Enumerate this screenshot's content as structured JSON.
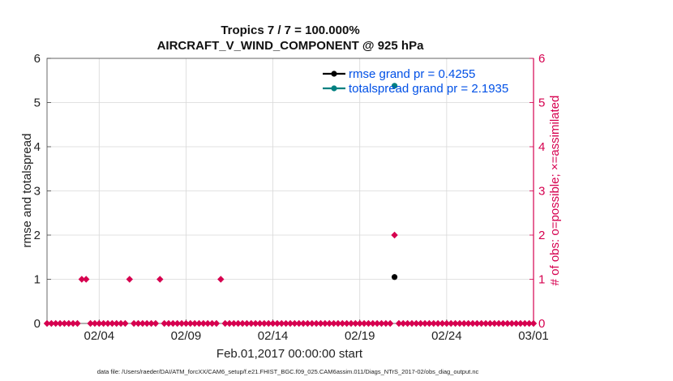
{
  "chart_data": {
    "type": "scatter",
    "title_line1": "Tropics 7 / 7 = 100.000%",
    "title_line2": "AIRCRAFT_V_WIND_COMPONENT @ 925 hPa",
    "ylabel_left": "rmse and totalspread",
    "ylabel_right": "# of obs: o=possible; ×=assimilated",
    "xlabel": "Feb.01,2017 00:00:00 start",
    "footer": "data file: /Users/raeder/DAI/ATM_forcXX/CAM6_setup/f.e21.FHIST_BGC.f09_025.CAM6assim.011/Diags_NTrS_2017-02/obs_diag_output.nc",
    "x_tick_labels": [
      "02/04",
      "02/09",
      "02/14",
      "02/19",
      "02/24",
      "03/01"
    ],
    "x_tick_days": [
      3,
      8,
      13,
      18,
      23,
      28
    ],
    "xlim": [
      0,
      28
    ],
    "ylim_left": [
      0,
      6
    ],
    "ylim_right": [
      0,
      6
    ],
    "yticks_left": [
      "0",
      "1",
      "2",
      "3",
      "4",
      "5",
      "6"
    ],
    "yticks_right": [
      "0",
      "1",
      "2",
      "3",
      "4",
      "5",
      "6"
    ],
    "grid": true,
    "legend_position": "top-right",
    "series": [
      {
        "name": "rmse grand pr = 0.4255",
        "color": "#000000",
        "marker": "circle",
        "points": [
          [
            20,
            1.05
          ]
        ]
      },
      {
        "name": "totalspread grand pr = 2.1935",
        "color": "#008080",
        "marker": "circle",
        "points": [
          [
            20,
            5.38
          ]
        ]
      }
    ],
    "obs_count": {
      "color": "#d6004f",
      "marker": "diamond",
      "step_days": 0.25,
      "nonzero": [
        {
          "x": 2.0,
          "value": 1
        },
        {
          "x": 2.25,
          "value": 1
        },
        {
          "x": 4.75,
          "value": 1
        },
        {
          "x": 6.5,
          "value": 1
        },
        {
          "x": 10.0,
          "value": 1
        },
        {
          "x": 20.0,
          "value": 2
        }
      ]
    }
  }
}
